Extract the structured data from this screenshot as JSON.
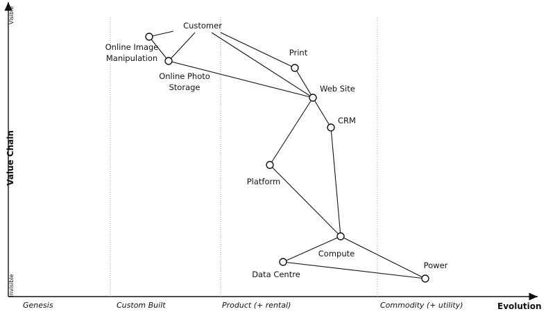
{
  "axes": {
    "y_label": "Value Chain",
    "y_top": "Visible",
    "y_bottom": "Invisible",
    "x_label": "Evolution"
  },
  "stages": [
    "Genesis",
    "Custom Built",
    "Product (+ rental)",
    "Commodity (+ utility)"
  ],
  "nodes": [
    {
      "label": [
        "Customer"
      ]
    },
    {
      "label": [
        "Online Image",
        "Manipulation"
      ]
    },
    {
      "label": [
        "Online Photo",
        "Storage"
      ]
    },
    {
      "label": [
        "Print"
      ]
    },
    {
      "label": [
        "Web Site"
      ]
    },
    {
      "label": [
        "CRM"
      ]
    },
    {
      "label": [
        "Platform"
      ]
    },
    {
      "label": [
        "Compute"
      ]
    },
    {
      "label": [
        "Data Centre"
      ]
    },
    {
      "label": [
        "Power"
      ]
    }
  ]
}
